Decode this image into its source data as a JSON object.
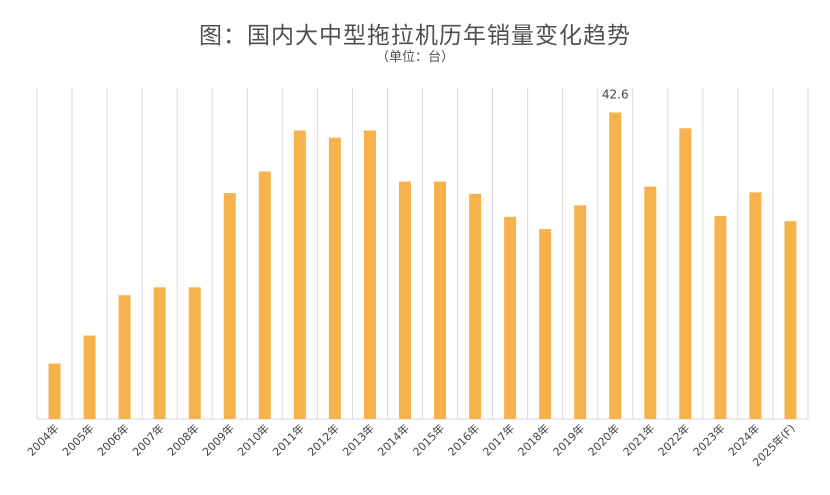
{
  "chart_data": {
    "type": "bar",
    "title": "图：国内大中型拖拉机历年销量变化趋势",
    "subtitle": "（单位：台）",
    "categories": [
      "2004年",
      "2005年",
      "2006年",
      "2007年",
      "2008年",
      "2009年",
      "2010年",
      "2011年",
      "2012年",
      "2013年",
      "2014年",
      "2015年",
      "2016年",
      "2017年",
      "2018年",
      "2019年",
      "2020年",
      "2021年",
      "2022年",
      "2023年",
      "2024年",
      "2025年(F)"
    ],
    "values": [
      7.7,
      11.6,
      17.2,
      18.3,
      18.3,
      31.4,
      34.4,
      40.1,
      39.1,
      40.1,
      33.0,
      33.0,
      31.3,
      28.1,
      26.4,
      29.7,
      42.6,
      32.3,
      40.4,
      28.2,
      31.5,
      27.5
    ],
    "data_labels": [
      {
        "index": 16,
        "text": "42.6"
      }
    ],
    "ylim": [
      0,
      46
    ],
    "grid": "vertical",
    "color": "#F6B24D"
  }
}
